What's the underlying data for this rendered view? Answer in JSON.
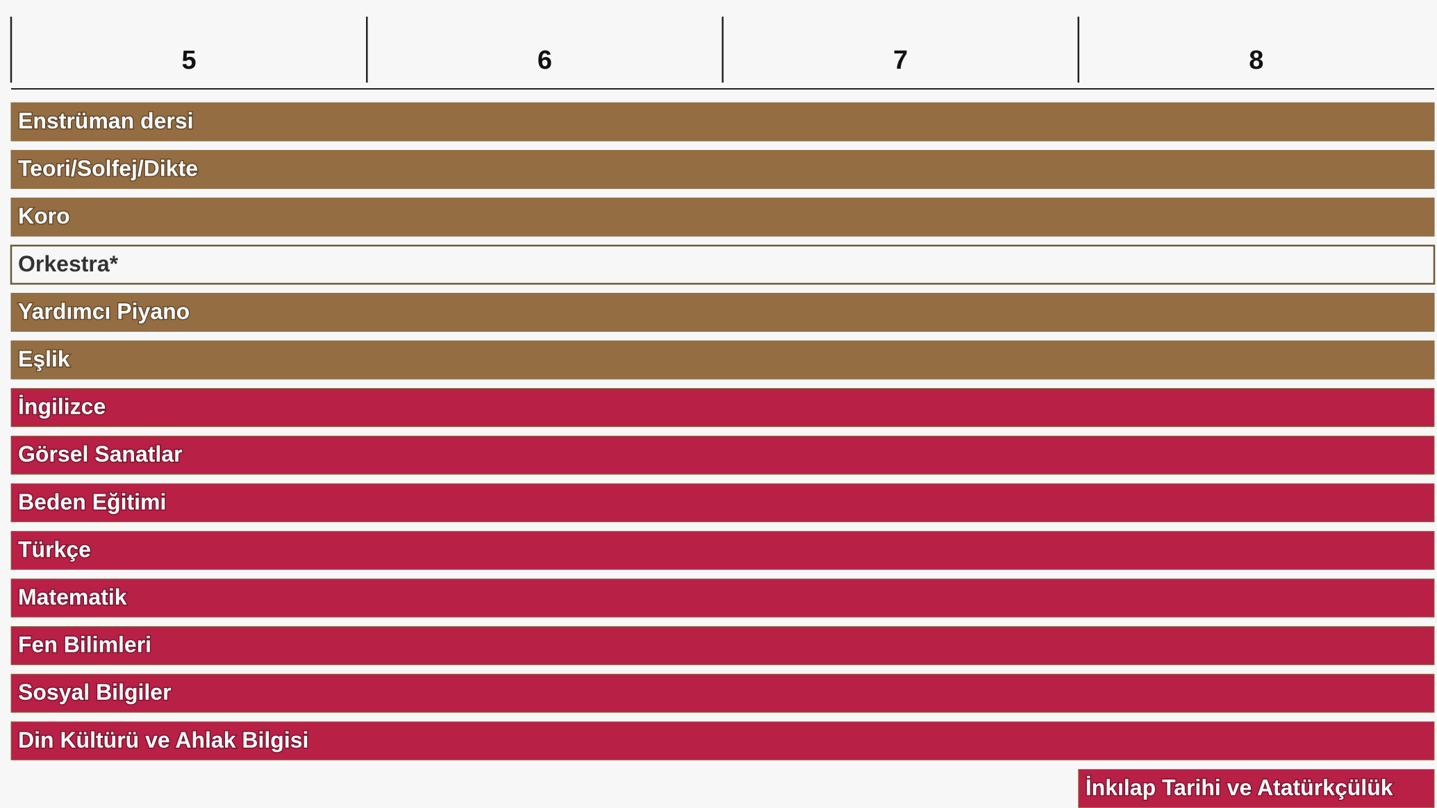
{
  "chart_data": {
    "type": "gantt",
    "categories": [
      "5",
      "6",
      "7",
      "8"
    ],
    "tasks": [
      {
        "name": "Enstrüman dersi",
        "start": "5",
        "end": "8",
        "color": "#946d42"
      },
      {
        "name": "Teori/Solfej/Dikte",
        "start": "5",
        "end": "8",
        "color": "#946d42"
      },
      {
        "name": "Koro",
        "start": "5",
        "end": "8",
        "color": "#946d42"
      },
      {
        "name": "Orkestra*",
        "start": "5",
        "end": "8",
        "color": "#f7f7f7"
      },
      {
        "name": "Yardımcı Piyano",
        "start": "5",
        "end": "8",
        "color": "#946d42"
      },
      {
        "name": "Eşlik",
        "start": "5",
        "end": "8",
        "color": "#946d42"
      },
      {
        "name": "İngilizce",
        "start": "5",
        "end": "8",
        "color": "#b92046"
      },
      {
        "name": "Görsel Sanatlar",
        "start": "5",
        "end": "8",
        "color": "#b92046"
      },
      {
        "name": "Beden Eğitimi",
        "start": "5",
        "end": "8",
        "color": "#b92046"
      },
      {
        "name": "Türkçe",
        "start": "5",
        "end": "8",
        "color": "#b92046"
      },
      {
        "name": "Matematik",
        "start": "5",
        "end": "8",
        "color": "#b92046"
      },
      {
        "name": "Fen Bilimleri",
        "start": "5",
        "end": "8",
        "color": "#b92046"
      },
      {
        "name": "Sosyal Bilgiler",
        "start": "5",
        "end": "8",
        "color": "#b92046"
      },
      {
        "name": "Din Kültürü ve Ahlak Bilgisi",
        "start": "5",
        "end": "8",
        "color": "#b92046"
      },
      {
        "name": "İnkılap Tarihi ve Atatürkçülük",
        "start": "8",
        "end": "8",
        "color": "#b92046"
      }
    ]
  }
}
